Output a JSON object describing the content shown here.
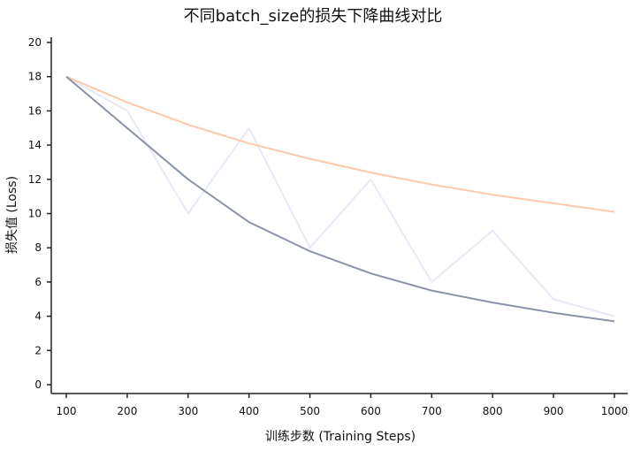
{
  "chart_data": {
    "type": "line",
    "title": "不同batch_size的损失下降曲线对比",
    "xlabel": "训练步数 (Training Steps)",
    "ylabel": "损失值 (Loss)",
    "x": [
      100,
      200,
      300,
      400,
      500,
      600,
      700,
      800,
      900,
      1000
    ],
    "xlim": [
      100,
      1000
    ],
    "ylim": [
      0,
      20
    ],
    "xticks": [
      100,
      200,
      300,
      400,
      500,
      600,
      700,
      800,
      900,
      1000
    ],
    "yticks": [
      0,
      2,
      4,
      6,
      8,
      10,
      12,
      14,
      16,
      18,
      20
    ],
    "grid": false,
    "legend": "none",
    "series": [
      {
        "color": "#e8e8f8",
        "values": [
          18,
          16,
          10,
          15,
          8,
          12,
          6,
          9,
          5,
          4
        ]
      },
      {
        "color": "#ffc8a8",
        "values": [
          18,
          16.5,
          15.2,
          14.1,
          13.2,
          12.4,
          11.7,
          11.1,
          10.6,
          10.1
        ]
      },
      {
        "color": "#8a94a6",
        "values": [
          18,
          15,
          12,
          9.5,
          7.8,
          6.5,
          5.5,
          4.8,
          4.2,
          3.7
        ]
      }
    ]
  }
}
